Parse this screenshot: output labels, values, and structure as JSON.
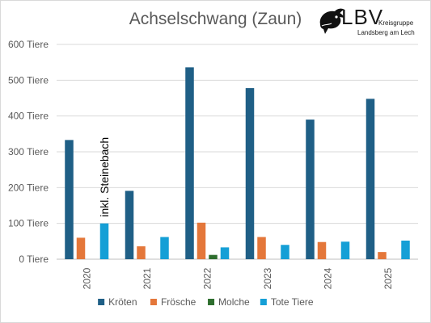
{
  "chart_data": {
    "type": "bar",
    "title": "Achselschwang (Zaun)",
    "categories": [
      "2020",
      "2021",
      "2022",
      "2023",
      "2024",
      "2025"
    ],
    "series": [
      {
        "name": "Kröten",
        "color": "#1f5f86",
        "values": [
          333,
          191,
          536,
          478,
          390,
          448
        ]
      },
      {
        "name": "Frösche",
        "color": "#e4773a",
        "values": [
          60,
          36,
          102,
          62,
          48,
          20
        ]
      },
      {
        "name": "Molche",
        "color": "#2e6e2e",
        "values": [
          0,
          0,
          12,
          0,
          0,
          0
        ]
      },
      {
        "name": "Tote Tiere",
        "color": "#159fd6",
        "values": [
          100,
          62,
          33,
          40,
          49,
          52
        ]
      }
    ],
    "ylim": [
      0,
      600
    ],
    "yticks": [
      "0 Tiere",
      "100 Tiere",
      "200 Tiere",
      "300 Tiere",
      "400 Tiere",
      "500 Tiere",
      "600 Tiere"
    ],
    "grid": true,
    "legend_position": "bottom",
    "annotation": {
      "category": "2020",
      "text": "inkl. Steinebach"
    }
  },
  "logo": {
    "name": "LBV",
    "line1": "Kreisgruppe",
    "line2": "Landsberg am Lech"
  }
}
